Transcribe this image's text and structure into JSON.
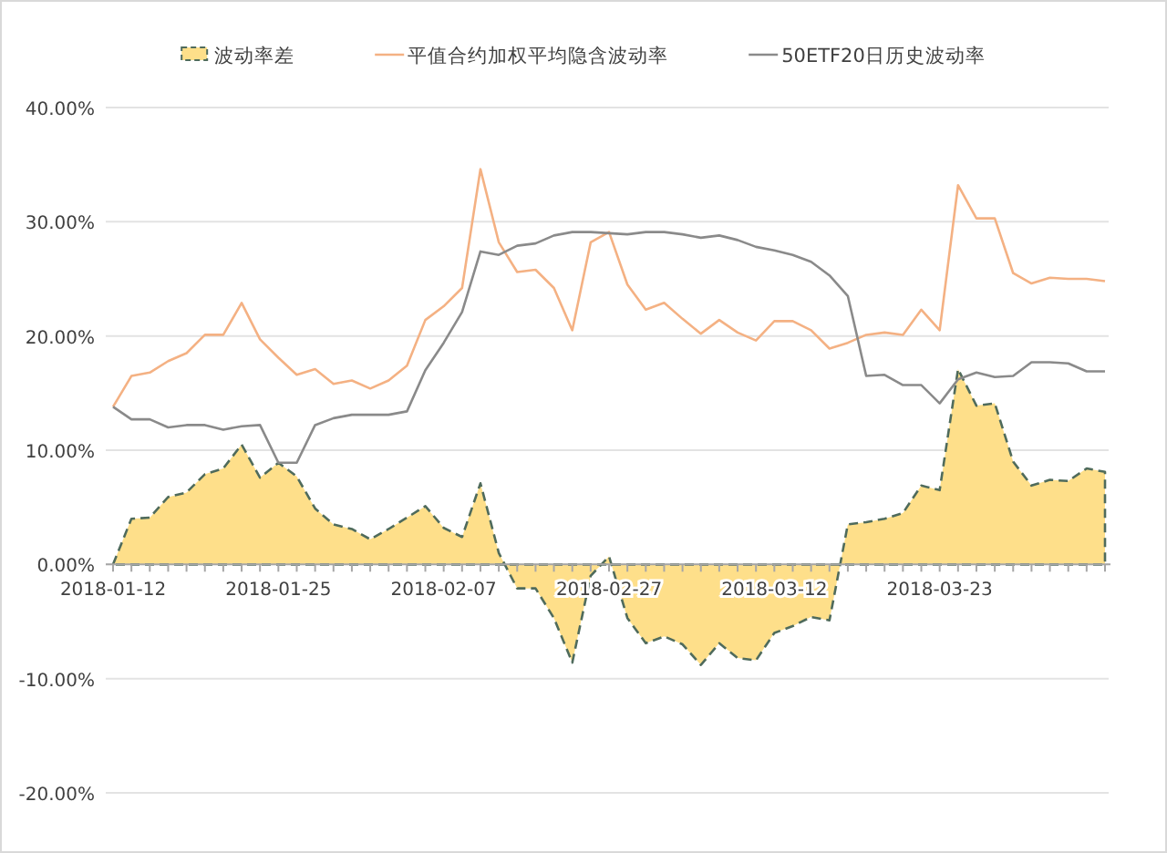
{
  "chart_data": {
    "type": "line",
    "categories": [
      "2018-01-12",
      null,
      null,
      null,
      null,
      null,
      null,
      null,
      null,
      "2018-01-25",
      null,
      null,
      null,
      null,
      null,
      null,
      null,
      null,
      "2018-02-07",
      null,
      null,
      null,
      null,
      null,
      null,
      null,
      null,
      "2018-02-27",
      null,
      null,
      null,
      null,
      null,
      null,
      null,
      null,
      "2018-03-12",
      null,
      null,
      null,
      null,
      null,
      null,
      null,
      null,
      "2018-03-23",
      null,
      null,
      null,
      null,
      null,
      null,
      null,
      null,
      null
    ],
    "series": [
      {
        "name": "波动率差",
        "type": "area",
        "color": "#fedf8a",
        "line_style": "dashed",
        "values": [
          0,
          4.0,
          4.1,
          5.9,
          6.3,
          7.9,
          8.4,
          10.5,
          7.6,
          8.9,
          7.7,
          4.9,
          3.5,
          3.1,
          2.2,
          3.1,
          4.1,
          5.1,
          3.2,
          2.4,
          7.1,
          1.0,
          -2.1,
          -2.1,
          -4.7,
          -8.6,
          -1.0,
          0.7,
          -4.7,
          -6.9,
          -6.3,
          -7.0,
          -8.8,
          -6.9,
          -8.2,
          -8.4,
          -6.0,
          -5.4,
          -4.6,
          -4.9,
          3.5,
          3.7,
          4.0,
          4.5,
          6.9,
          6.5,
          17.1,
          13.9,
          14.1,
          9.0,
          6.9,
          7.4,
          7.3,
          8.4,
          8.1
        ]
      },
      {
        "name": "平值合约加权平均隐含波动率",
        "color": "#f4b183",
        "values": [
          13.8,
          16.5,
          16.8,
          17.8,
          18.5,
          20.1,
          20.1,
          22.9,
          19.7,
          18.1,
          16.6,
          17.1,
          15.8,
          16.1,
          15.4,
          16.1,
          17.4,
          21.4,
          22.6,
          24.2,
          34.6,
          28.2,
          25.6,
          25.8,
          24.2,
          20.5,
          28.2,
          29.1,
          24.5,
          22.3,
          22.9,
          21.5,
          20.2,
          21.4,
          20.3,
          19.6,
          21.3,
          21.3,
          20.5,
          18.9,
          19.4,
          20.1,
          20.3,
          20.1,
          22.3,
          20.5,
          33.2,
          30.3,
          30.3,
          25.5,
          24.6,
          25.1,
          25.0,
          25.0,
          24.8
        ]
      },
      {
        "name": "50ETF20日历史波动率",
        "color": "#8a8a8a",
        "values": [
          13.8,
          12.7,
          12.7,
          12.0,
          12.2,
          12.2,
          11.8,
          12.1,
          12.2,
          8.9,
          8.9,
          12.2,
          12.8,
          13.1,
          13.1,
          13.1,
          13.4,
          17.0,
          19.4,
          22.1,
          27.4,
          27.1,
          27.9,
          28.1,
          28.8,
          29.1,
          29.1,
          29.0,
          28.9,
          29.1,
          29.1,
          28.9,
          28.6,
          28.8,
          28.4,
          27.8,
          27.5,
          27.1,
          26.5,
          25.3,
          23.5,
          16.5,
          16.6,
          15.7,
          15.7,
          14.1,
          16.2,
          16.8,
          16.4,
          16.5,
          17.7,
          17.7,
          17.6,
          16.9,
          16.9
        ]
      }
    ],
    "ylim": [
      -20,
      40
    ],
    "yticks": [
      {
        "value": -20,
        "label": "-20.00%"
      },
      {
        "value": -10,
        "label": "-10.00%"
      },
      {
        "value": 0,
        "label": "0.00%"
      },
      {
        "value": 10,
        "label": "10.00%"
      },
      {
        "value": 20,
        "label": "20.00%"
      },
      {
        "value": 30,
        "label": "30.00%"
      },
      {
        "value": 40,
        "label": "40.00%"
      }
    ],
    "grid": "y",
    "legend": "top"
  }
}
